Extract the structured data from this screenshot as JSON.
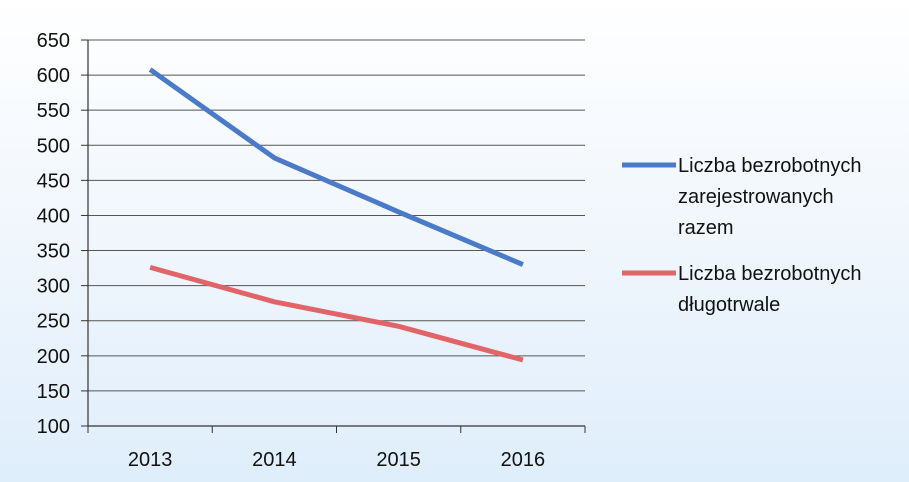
{
  "chart_data": {
    "type": "line",
    "title": "",
    "xlabel": "",
    "ylabel": "",
    "categories": [
      "2013",
      "2014",
      "2015",
      "2016"
    ],
    "ylim": [
      100,
      650
    ],
    "yticks": [
      100,
      150,
      200,
      250,
      300,
      350,
      400,
      450,
      500,
      550,
      600,
      650
    ],
    "grid": true,
    "legend_position": "right",
    "series": [
      {
        "name_lines": [
          "Liczba bezrobotnych",
          "zarejestrowanych",
          "razem"
        ],
        "color": "#4a7ac8",
        "values": [
          608,
          482,
          405,
          330
        ]
      },
      {
        "name_lines": [
          "Liczba bezrobotnych",
          "długotrwale"
        ],
        "color": "#e06468",
        "values": [
          326,
          277,
          242,
          194
        ]
      }
    ]
  }
}
